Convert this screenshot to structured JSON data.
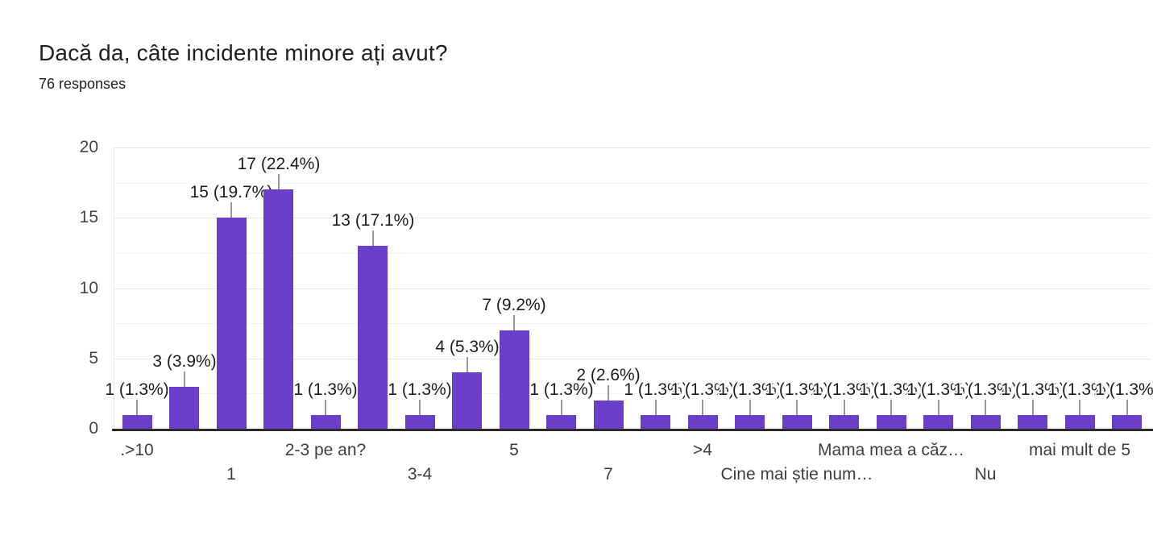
{
  "chart_data": {
    "type": "bar",
    "title": "Dacă da, câte incidente minore ați avut?",
    "subtitle": "76 responses",
    "responses_count": 76,
    "ylim": [
      0,
      20
    ],
    "y_ticks": [
      0,
      5,
      10,
      15,
      20
    ],
    "gridline_step": 2.5,
    "grid": true,
    "legend": "none",
    "colors": {
      "bar": "#6a3ec9",
      "baseline": "#2b2b2b",
      "gridline_major": "#e8e8e8",
      "gridline_minor": "#f3f3f3",
      "stem": "#9a9a9a",
      "annotation_text": "#1d1d1d",
      "axis_text": "#3c4043",
      "title_text": "#202124"
    },
    "bars": [
      {
        "value": 1,
        "label": "1 (1.3%)"
      },
      {
        "value": 3,
        "label": "3 (3.9%)"
      },
      {
        "value": 15,
        "label": "15 (19.7%)"
      },
      {
        "value": 17,
        "label": "17 (22.4%)"
      },
      {
        "value": 1,
        "label": "1 (1.3%)"
      },
      {
        "value": 13,
        "label": "13 (17.1%)"
      },
      {
        "value": 1,
        "label": "1 (1.3%)"
      },
      {
        "value": 4,
        "label": "4 (5.3%)"
      },
      {
        "value": 7,
        "label": "7 (9.2%)"
      },
      {
        "value": 1,
        "label": "1 (1.3%)"
      },
      {
        "value": 2,
        "label": "2 (2.6%)"
      },
      {
        "value": 1,
        "label": "1 (1.3%)"
      },
      {
        "value": 1,
        "label": "1 (1.3%)"
      },
      {
        "value": 1,
        "label": "1 (1.3%)"
      },
      {
        "value": 1,
        "label": "1 (1.3%)"
      },
      {
        "value": 1,
        "label": "1 (1.3%)"
      },
      {
        "value": 1,
        "label": "1 (1.3%)"
      },
      {
        "value": 1,
        "label": "1 (1.3%)"
      },
      {
        "value": 1,
        "label": "1 (1.3%)"
      },
      {
        "value": 1,
        "label": "1 (1.3%)"
      },
      {
        "value": 1,
        "label": "1 (1.3%)"
      },
      {
        "value": 1,
        "label": "1 (1.3%)"
      }
    ],
    "x_tick_labels": [
      {
        "text": ".>10",
        "bar": 0,
        "row": 1
      },
      {
        "text": "1",
        "bar": 2,
        "row": 2
      },
      {
        "text": "2-3 pe an?",
        "bar": 4,
        "row": 1
      },
      {
        "text": "3-4",
        "bar": 6,
        "row": 2
      },
      {
        "text": "5",
        "bar": 8,
        "row": 1
      },
      {
        "text": "7",
        "bar": 10,
        "row": 2
      },
      {
        "text": ">4",
        "bar": 12,
        "row": 1
      },
      {
        "text": "Cine mai știe num…",
        "bar": 14,
        "row": 2
      },
      {
        "text": "Mama mea a căz…",
        "bar": 16,
        "row": 1
      },
      {
        "text": "Nu",
        "bar": 18,
        "row": 2
      },
      {
        "text": "mai mult de 5",
        "bar": 20,
        "row": 1
      }
    ]
  }
}
